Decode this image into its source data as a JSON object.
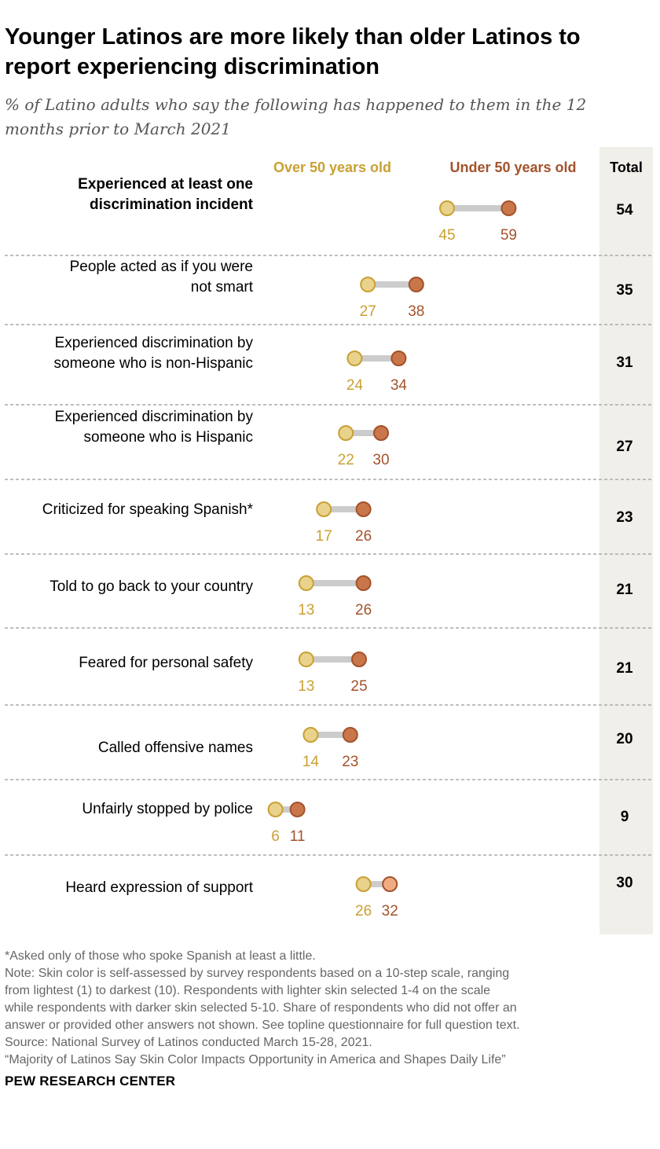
{
  "title_line1": "Younger Latinos are more likely than older Latinos to",
  "title_line2": "report experiencing discrimination",
  "subtitle_line1": "% of Latino adults who say the following has happened to them in the 12",
  "subtitle_line2": "months prior to March 2021",
  "colors": {
    "older": "#e8d28c",
    "older_stroke": "#c9a033",
    "older_text": "#c9a033",
    "younger": "#c9764a",
    "younger_stroke": "#a3522b",
    "younger_text": "#a3522b",
    "younger_light": "#f0ad84",
    "connector": "#cccccc",
    "total_bg": "#f0efe9",
    "separator": "#aaaaaa"
  },
  "chart_data": {
    "type": "dumbbell",
    "title": "Younger Latinos are more likely than older Latinos to report experiencing discrimination",
    "unit": "%",
    "series": [
      {
        "name": "Over 50 years old",
        "values": [
          45,
          27,
          24,
          22,
          17,
          13,
          13,
          14,
          6,
          26
        ]
      },
      {
        "name": "Under 50 years old",
        "values": [
          59,
          38,
          34,
          30,
          26,
          26,
          25,
          23,
          11,
          32
        ]
      }
    ],
    "total_label": "Total",
    "totals": [
      54,
      35,
      31,
      27,
      23,
      21,
      21,
      20,
      9,
      30
    ],
    "categories": [
      "Experienced at least one discrimination incident",
      "People acted as if you were not smart",
      "Experienced discrimination by someone who is non-Hispanic",
      "Experienced discrimination by someone who is Hispanic",
      "Criticized for speaking Spanish*",
      "Told to go back to your country",
      "Feared for personal safety",
      "Called offensive names",
      "Unfairly stopped by police",
      "Heard expression of support"
    ],
    "rows": [
      {
        "label_lines": [
          "Experienced at least one",
          "discrimination incident"
        ],
        "bold": true
      },
      {
        "label_lines": [
          "People acted as if you were",
          "not smart"
        ]
      },
      {
        "label_lines": [
          "Experienced discrimination by",
          "someone who is non-Hispanic"
        ]
      },
      {
        "label_lines": [
          "Experienced discrimination by",
          "someone who is Hispanic"
        ]
      },
      {
        "label_lines": [
          "Criticized for speaking Spanish*"
        ]
      },
      {
        "label_lines": [
          "Told to go back to your country"
        ]
      },
      {
        "label_lines": [
          "Feared for personal safety"
        ]
      },
      {
        "label_lines": [
          "Called offensive names"
        ]
      },
      {
        "label_lines": [
          "Unfairly stopped by police"
        ]
      },
      {
        "label_lines": [
          "Heard expression of support"
        ],
        "highlight_light": true
      }
    ],
    "xlim": [
      0,
      60
    ]
  },
  "notes": [
    "*Asked only of those who spoke Spanish at least a little.",
    "Note: Skin color is self-assessed by survey respondents based on a 10-step scale, ranging",
    "from lightest (1) to darkest (10). Respondents with lighter skin selected 1-4 on the scale",
    "while respondents with darker skin selected 5-10. Share of respondents who did not offer an",
    "answer or provided other answers not shown. See topline questionnaire for full question text.",
    "Source: National Survey of Latinos conducted March 15-28, 2021.",
    "“Majority of Latinos Say Skin Color Impacts Opportunity in America and Shapes Daily Life”"
  ],
  "brand": "PEW RESEARCH CENTER"
}
